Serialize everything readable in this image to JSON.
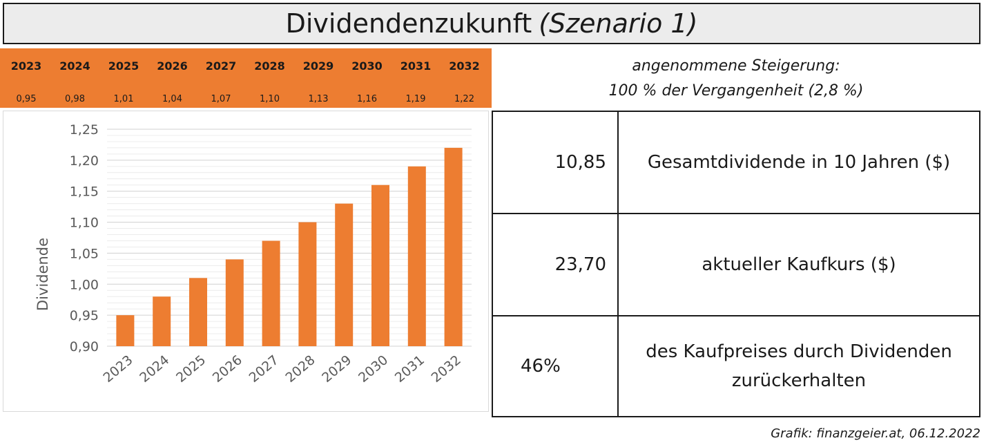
{
  "title": {
    "main": "Dividendenzukunft",
    "scenario": "(Szenario 1)"
  },
  "header_table": {
    "years": [
      "2023",
      "2024",
      "2025",
      "2026",
      "2027",
      "2028",
      "2029",
      "2030",
      "2031",
      "2032"
    ],
    "values": [
      "0,95",
      "0,98",
      "1,01",
      "1,04",
      "1,07",
      "1,10",
      "1,13",
      "1,16",
      "1,19",
      "1,22"
    ]
  },
  "assumption": {
    "line1": "angenommene Steigerung:",
    "line2": "100 % der Vergangenheit (2,8 %)"
  },
  "summary": {
    "rows": [
      {
        "value": "10,85",
        "label": "Gesamtdividende in 10 Jahren ($)"
      },
      {
        "value": "23,70",
        "label": "aktueller Kaufkurs ($)"
      },
      {
        "value": "46%",
        "label_line1": "des Kaufpreises durch Dividenden",
        "label_line2": "zurückerhalten"
      }
    ]
  },
  "credit": "Grafik: finanzgeier.at, 06.12.2022",
  "colors": {
    "bar": "#ED7D31",
    "header": "#ED7D31",
    "title_bg": "#ECECEC"
  },
  "chart_data": {
    "type": "bar",
    "categories": [
      "2023",
      "2024",
      "2025",
      "2026",
      "2027",
      "2028",
      "2029",
      "2030",
      "2031",
      "2032"
    ],
    "values": [
      0.95,
      0.98,
      1.01,
      1.04,
      1.07,
      1.1,
      1.13,
      1.16,
      1.19,
      1.22
    ],
    "ylabel": "Dividende",
    "xlabel": "",
    "ylim": [
      0.9,
      1.25
    ],
    "yticks": [
      0.9,
      0.95,
      1.0,
      1.05,
      1.1,
      1.15,
      1.2,
      1.25
    ],
    "ytick_labels": [
      "0,90",
      "0,95",
      "1,00",
      "1,05",
      "1,10",
      "1,15",
      "1,20",
      "1,25"
    ],
    "grid": true
  }
}
